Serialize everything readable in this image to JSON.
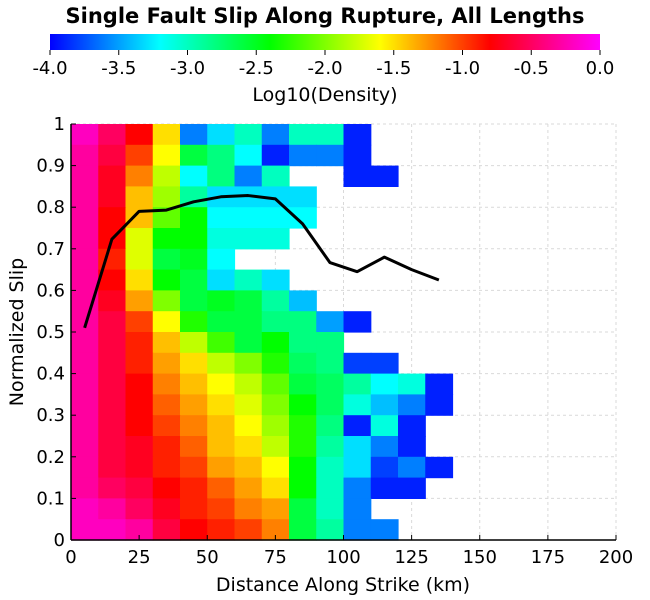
{
  "chart_data": {
    "type": "heatmap",
    "title": "Single Fault Slip Along Rupture, All Lengths",
    "xlabel": "Distance Along Strike (km)",
    "ylabel": "Normalized Slip",
    "xlim": [
      0,
      200
    ],
    "ylim": [
      0,
      1
    ],
    "x_ticks": [
      "0",
      "25",
      "50",
      "75",
      "100",
      "125",
      "150",
      "175",
      "200"
    ],
    "y_ticks": [
      "0",
      "0.1",
      "0.2",
      "0.3",
      "0.4",
      "0.5",
      "0.6",
      "0.7",
      "0.8",
      "0.9",
      "1"
    ],
    "grid": true,
    "colorbar": {
      "label": "Log10(Density)",
      "range": [
        -4.0,
        0.0
      ],
      "ticks": [
        "-4.0",
        "-3.5",
        "-3.0",
        "-2.5",
        "-2.0",
        "-1.5",
        "-1.0",
        "-0.5",
        "0.0"
      ],
      "colormap": [
        "#0000ff",
        "#00ffff",
        "#00ff00",
        "#ffff00",
        "#ff0000",
        "#ff00ff"
      ]
    },
    "cell_size": {
      "x_km": 10,
      "y_slip": 0.05
    },
    "heatmap_rows": [
      [
        -0.2,
        -0.5,
        -0.8,
        -1.5,
        -3.6,
        -3.3,
        -3.0,
        -3.6,
        -3.0,
        -3.0,
        -3.9,
        null,
        null,
        null
      ],
      [
        -0.3,
        -0.6,
        -1.0,
        -1.6,
        -2.6,
        -2.8,
        -3.2,
        -3.9,
        -3.6,
        -3.6,
        -3.9,
        null,
        null,
        null
      ],
      [
        -0.3,
        -0.7,
        -1.2,
        -1.8,
        -3.2,
        -2.8,
        -3.6,
        -3.0,
        null,
        null,
        -3.9,
        -3.9,
        null,
        null
      ],
      [
        -0.3,
        -0.7,
        -1.4,
        -1.9,
        -2.9,
        -3.3,
        -3.3,
        -3.3,
        -3.3,
        null,
        null,
        null,
        null,
        null
      ],
      [
        -0.3,
        -0.8,
        -1.4,
        -2.1,
        -2.4,
        -3.2,
        -3.2,
        -3.2,
        -3.2,
        null,
        null,
        null,
        null,
        null
      ],
      [
        -0.3,
        -0.8,
        -1.7,
        -2.4,
        -2.4,
        -3.1,
        -3.1,
        -3.1,
        null,
        null,
        null,
        null,
        null,
        null
      ],
      [
        -0.3,
        -0.9,
        -1.7,
        -2.6,
        -2.5,
        -3.2,
        null,
        null,
        null,
        null,
        null,
        null,
        null,
        null
      ],
      [
        -0.3,
        -0.8,
        -1.5,
        -2.4,
        -2.6,
        -3.3,
        -3.0,
        -3.3,
        null,
        null,
        null,
        null,
        null,
        null
      ],
      [
        -0.3,
        -0.7,
        -1.3,
        -2.0,
        -2.6,
        -2.5,
        -2.6,
        -2.9,
        -3.4,
        null,
        null,
        null,
        null,
        null
      ],
      [
        -0.3,
        -0.6,
        -1.0,
        -1.6,
        -2.3,
        -2.6,
        -2.6,
        -2.8,
        -2.8,
        -3.5,
        -3.9,
        null,
        null,
        null
      ],
      [
        -0.3,
        -0.6,
        -0.9,
        -1.4,
        -1.8,
        -2.2,
        -2.6,
        -2.4,
        -2.8,
        -2.8,
        null,
        null,
        null,
        null
      ],
      [
        -0.3,
        -0.6,
        -0.9,
        -1.3,
        -1.5,
        -1.8,
        -2.0,
        -2.3,
        -2.7,
        -2.8,
        -3.8,
        -3.8,
        null,
        null
      ],
      [
        -0.3,
        -0.6,
        -0.8,
        -1.2,
        -1.4,
        -1.6,
        -1.8,
        -2.1,
        -2.6,
        -2.7,
        -2.9,
        -3.2,
        -3.1,
        -3.9
      ],
      [
        -0.3,
        -0.6,
        -0.8,
        -1.1,
        -1.3,
        -1.5,
        -1.7,
        -2.0,
        -2.4,
        -2.7,
        -3.1,
        -3.4,
        -3.6,
        -3.9
      ],
      [
        -0.3,
        -0.6,
        -0.8,
        -1.0,
        -1.2,
        -1.4,
        -1.6,
        -1.9,
        -2.3,
        -2.8,
        -3.9,
        -3.1,
        -3.9,
        null
      ],
      [
        -0.3,
        -0.6,
        -0.7,
        -0.9,
        -1.1,
        -1.4,
        -1.5,
        -1.8,
        -2.3,
        -2.9,
        -3.3,
        -3.6,
        -3.9,
        null
      ],
      [
        -0.3,
        -0.6,
        -0.7,
        -0.9,
        -1.0,
        -1.3,
        -1.4,
        -1.6,
        -2.4,
        -3.0,
        -3.3,
        -3.8,
        -3.6,
        -3.9
      ],
      [
        -0.3,
        -0.5,
        -0.6,
        -0.8,
        -0.9,
        -1.1,
        -1.3,
        -1.5,
        -2.4,
        -3.0,
        -3.6,
        -3.9,
        -3.9,
        null
      ],
      [
        -0.2,
        -0.3,
        -0.5,
        -0.7,
        -0.9,
        -1.0,
        -1.2,
        -1.3,
        -2.6,
        -3.0,
        -3.6,
        null,
        null,
        null
      ],
      [
        -0.2,
        -0.2,
        -0.3,
        -0.6,
        -0.8,
        -0.9,
        -1.0,
        -1.2,
        -2.6,
        -2.9,
        -3.6,
        -3.6,
        null,
        null
      ]
    ],
    "series": [
      {
        "type": "line",
        "x": [
          5,
          15,
          25,
          35,
          45,
          55,
          65,
          75,
          85,
          95,
          105,
          115,
          125,
          135
        ],
        "y": [
          0.51,
          0.723,
          0.79,
          0.793,
          0.813,
          0.825,
          0.828,
          0.82,
          0.76,
          0.667,
          0.645,
          0.68,
          0.65,
          0.625
        ],
        "color": "#000000"
      }
    ]
  }
}
